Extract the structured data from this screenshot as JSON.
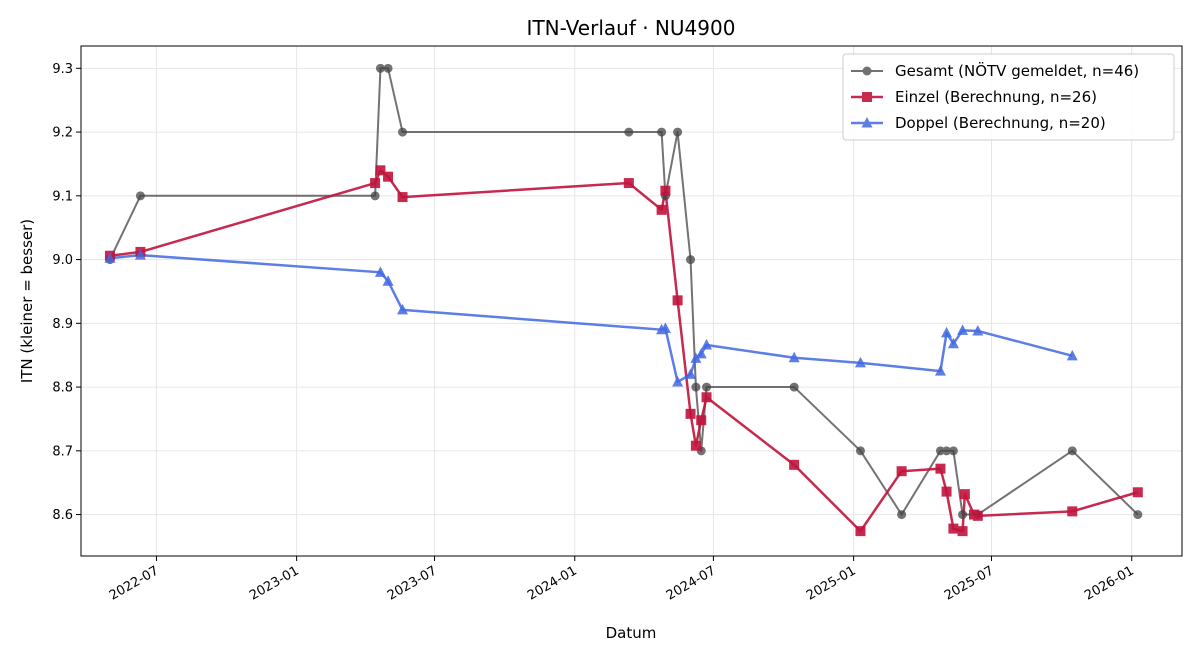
{
  "chart_data": {
    "type": "line",
    "title": "ITN-Verlauf · NU4900",
    "xlabel": "Datum",
    "ylabel": "ITN  (kleiner = besser)",
    "x_ticks": [
      "2022-07",
      "2023-01",
      "2023-07",
      "2024-01",
      "2024-07",
      "2025-01",
      "2025-07",
      "2026-01"
    ],
    "y_ticks": [
      "8.6",
      "8.7",
      "8.8",
      "8.9",
      "9.0",
      "9.1",
      "9.2",
      "9.3"
    ],
    "xlim": [
      "2022-03-24",
      "2026-03-08"
    ],
    "ylim": [
      8.535,
      9.335
    ],
    "grid": true,
    "legend_position": "top-right",
    "series": [
      {
        "name": "Gesamt (NÖTV gemeldet, n=46)",
        "color": "#444444",
        "marker": "circle",
        "points": [
          [
            "2022-05-01",
            9.0
          ],
          [
            "2022-06-10",
            9.1
          ],
          [
            "2023-04-14",
            9.1
          ],
          [
            "2023-04-21",
            9.3
          ],
          [
            "2023-05-01",
            9.3
          ],
          [
            "2023-05-20",
            9.2
          ],
          [
            "2024-03-12",
            9.2
          ],
          [
            "2024-04-24",
            9.2
          ],
          [
            "2024-04-29",
            9.1
          ],
          [
            "2024-05-15",
            9.2
          ],
          [
            "2024-06-01",
            9.0
          ],
          [
            "2024-06-08",
            8.8
          ],
          [
            "2024-06-15",
            8.7
          ],
          [
            "2024-06-22",
            8.8
          ],
          [
            "2024-10-15",
            8.8
          ],
          [
            "2025-01-10",
            8.7
          ],
          [
            "2025-03-05",
            8.6
          ],
          [
            "2025-04-25",
            8.7
          ],
          [
            "2025-05-03",
            8.7
          ],
          [
            "2025-05-12",
            8.7
          ],
          [
            "2025-05-24",
            8.6
          ],
          [
            "2025-06-13",
            8.6
          ],
          [
            "2025-10-15",
            8.7
          ],
          [
            "2026-01-09",
            8.6
          ]
        ]
      },
      {
        "name": "Einzel (Berechnung, n=26)",
        "color": "#c0143c",
        "marker": "square",
        "points": [
          [
            "2022-05-01",
            9.006
          ],
          [
            "2022-06-10",
            9.012
          ],
          [
            "2023-04-14",
            9.12
          ],
          [
            "2023-04-21",
            9.14
          ],
          [
            "2023-05-01",
            9.13
          ],
          [
            "2023-05-20",
            9.098
          ],
          [
            "2024-03-12",
            9.12
          ],
          [
            "2024-04-24",
            9.078
          ],
          [
            "2024-04-29",
            9.108
          ],
          [
            "2024-05-15",
            8.936
          ],
          [
            "2024-06-01",
            8.758
          ],
          [
            "2024-06-08",
            8.708
          ],
          [
            "2024-06-15",
            8.748
          ],
          [
            "2024-06-22",
            8.784
          ],
          [
            "2024-10-15",
            8.678
          ],
          [
            "2025-01-10",
            8.574
          ],
          [
            "2025-03-05",
            8.668
          ],
          [
            "2025-04-25",
            8.672
          ],
          [
            "2025-05-03",
            8.636
          ],
          [
            "2025-05-12",
            8.578
          ],
          [
            "2025-05-24",
            8.574
          ],
          [
            "2025-05-27",
            8.632
          ],
          [
            "2025-06-08",
            8.6
          ],
          [
            "2025-06-13",
            8.598
          ],
          [
            "2025-10-15",
            8.605
          ],
          [
            "2026-01-09",
            8.635
          ]
        ]
      },
      {
        "name": "Doppel (Berechnung, n=20)",
        "color": "#4169e1",
        "marker": "triangle",
        "points": [
          [
            "2022-05-01",
            9.002
          ],
          [
            "2022-06-10",
            9.007
          ],
          [
            "2023-04-21",
            8.98
          ],
          [
            "2023-05-01",
            8.966
          ],
          [
            "2023-05-20",
            8.921
          ],
          [
            "2024-04-24",
            8.89
          ],
          [
            "2024-04-29",
            8.892
          ],
          [
            "2024-05-15",
            8.808
          ],
          [
            "2024-06-01",
            8.82
          ],
          [
            "2024-06-08",
            8.845
          ],
          [
            "2024-06-15",
            8.852
          ],
          [
            "2024-06-22",
            8.866
          ],
          [
            "2024-10-15",
            8.846
          ],
          [
            "2025-01-10",
            8.838
          ],
          [
            "2025-04-25",
            8.825
          ],
          [
            "2025-05-03",
            8.885
          ],
          [
            "2025-05-12",
            8.868
          ],
          [
            "2025-05-24",
            8.889
          ],
          [
            "2025-06-13",
            8.888
          ],
          [
            "2025-10-15",
            8.849
          ]
        ]
      }
    ]
  }
}
